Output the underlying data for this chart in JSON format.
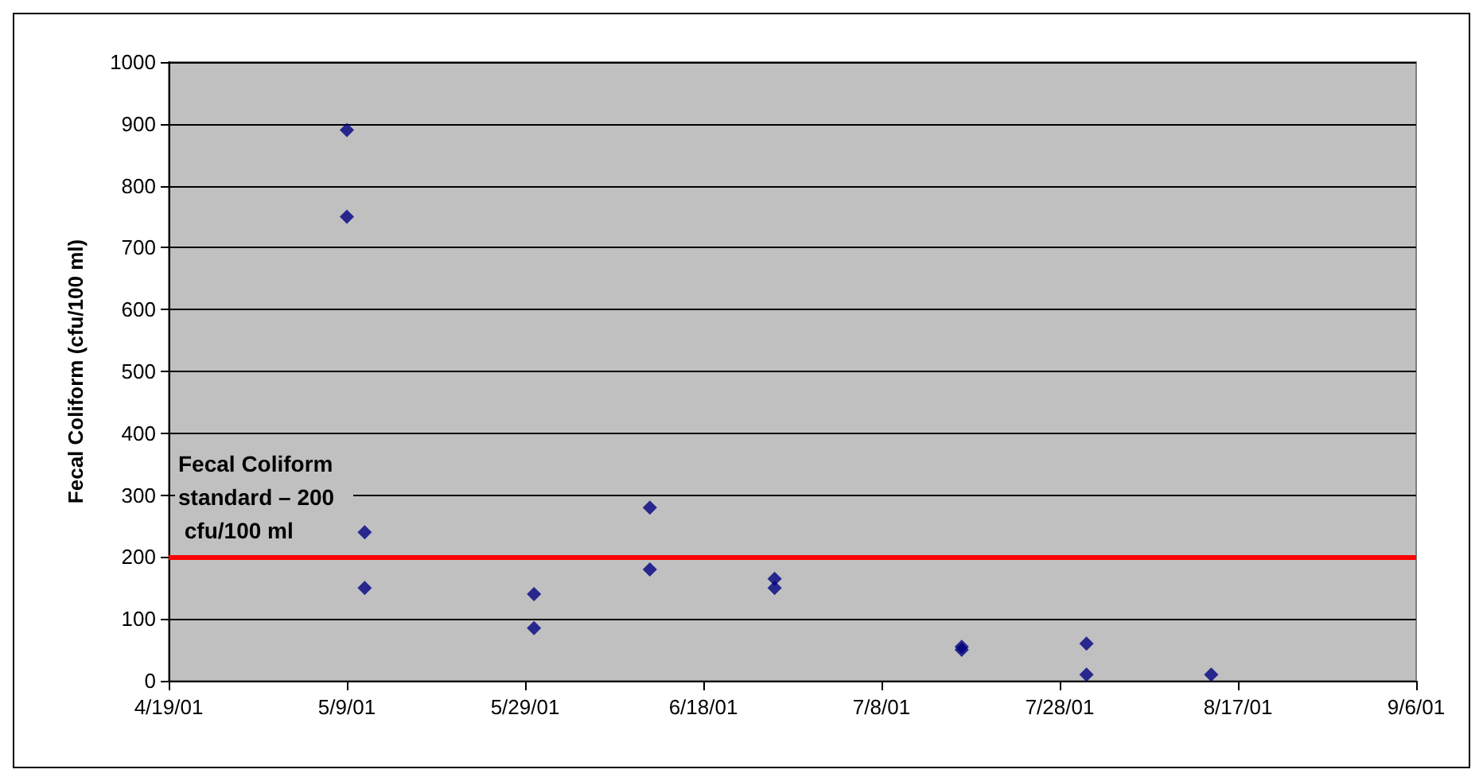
{
  "chart_data": {
    "type": "scatter",
    "ylabel": "Fecal Coliform (cfu/100 ml)",
    "x": [
      "2001-05-09",
      "2001-05-09",
      "2001-05-11",
      "2001-05-11",
      "2001-05-30",
      "2001-05-30",
      "2001-06-12",
      "2001-06-12",
      "2001-06-26",
      "2001-06-26",
      "2001-07-17",
      "2001-07-17",
      "2001-07-31",
      "2001-07-31",
      "2001-08-14"
    ],
    "values": [
      890,
      750,
      240,
      150,
      140,
      85,
      280,
      180,
      165,
      150,
      55,
      50,
      60,
      10,
      10
    ],
    "color": "#000080",
    "marker": "diamond",
    "xlim": [
      "2001-04-19",
      "2001-09-06"
    ],
    "xticks": [
      {
        "value": "2001-04-19",
        "label": "4/19/01"
      },
      {
        "value": "2001-05-09",
        "label": "5/9/01"
      },
      {
        "value": "2001-05-29",
        "label": "5/29/01"
      },
      {
        "value": "2001-06-18",
        "label": "6/18/01"
      },
      {
        "value": "2001-07-08",
        "label": "7/8/01"
      },
      {
        "value": "2001-07-28",
        "label": "7/28/01"
      },
      {
        "value": "2001-08-17",
        "label": "8/17/01"
      },
      {
        "value": "2001-09-06",
        "label": "9/6/01"
      }
    ],
    "ylim": [
      0,
      1000
    ],
    "yticks": [
      0,
      100,
      200,
      300,
      400,
      500,
      600,
      700,
      800,
      900,
      1000
    ],
    "ref_lines": [
      {
        "axis": "y",
        "value": 200,
        "label": "Fecal Coliform standard – 200 cfu/100 ml",
        "color": "#ff0000"
      }
    ],
    "grid": "y"
  }
}
